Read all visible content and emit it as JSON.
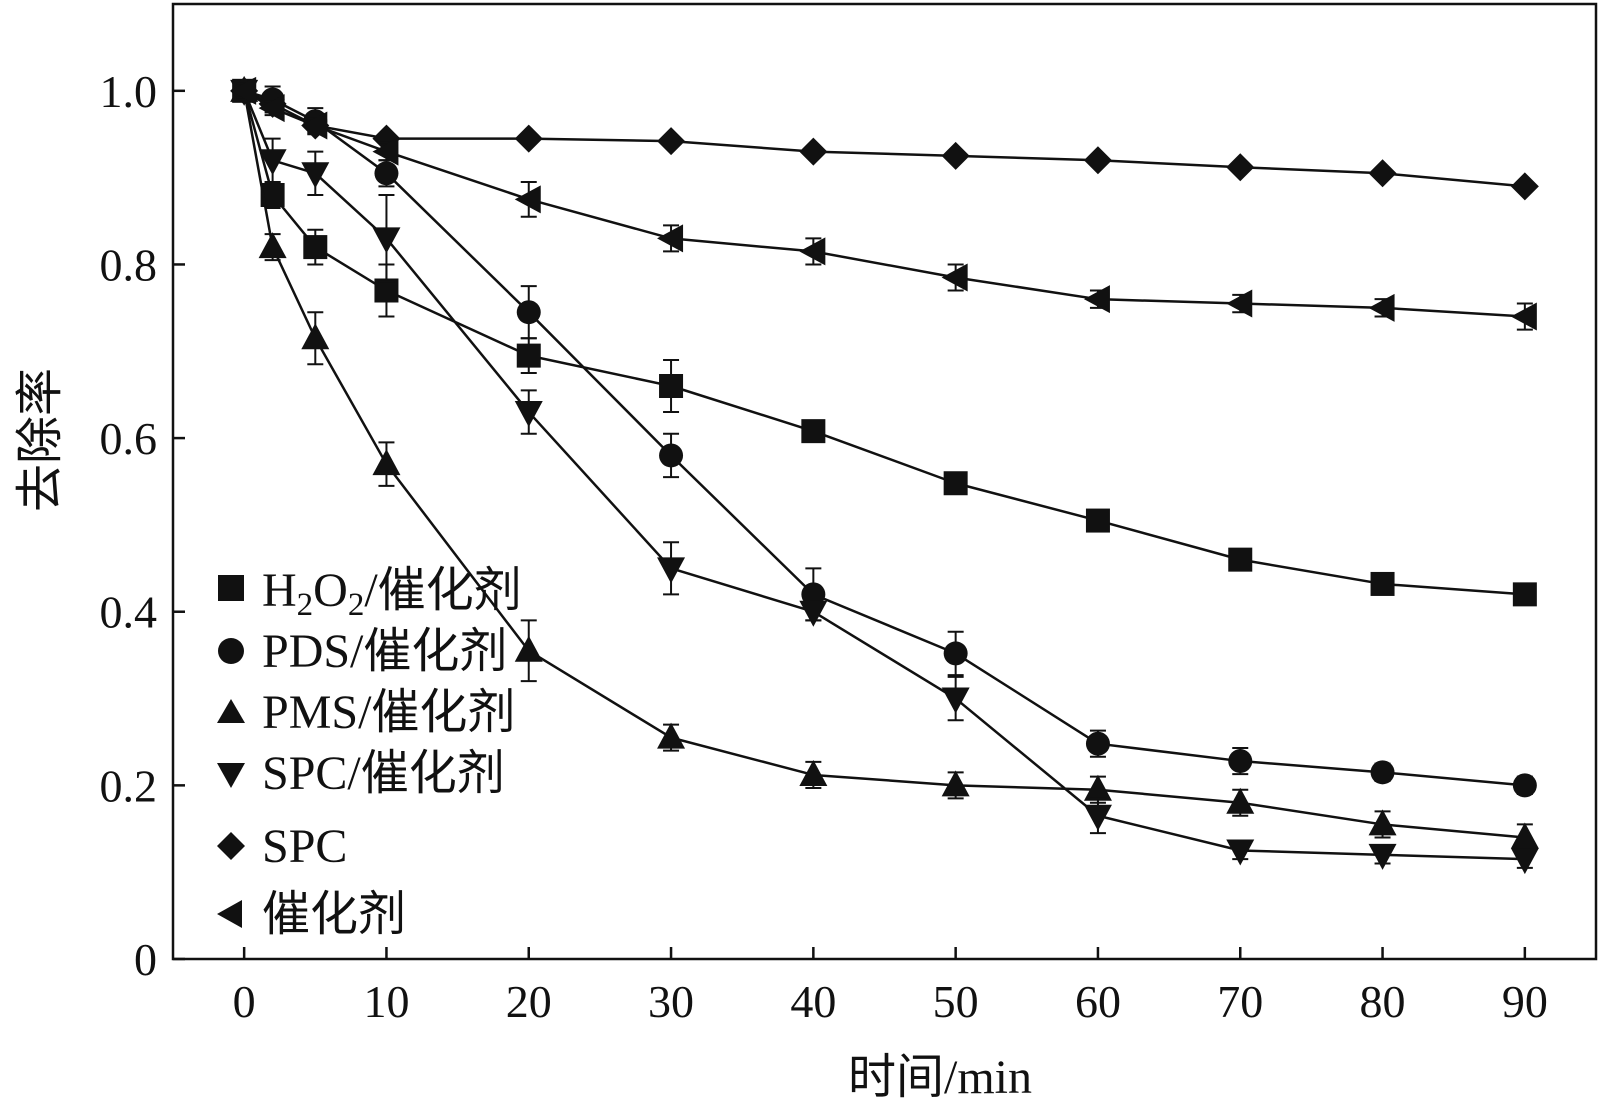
{
  "chart_data": {
    "type": "line",
    "title": "",
    "xlabel": "时间/min",
    "ylabel": "去除率",
    "xlim": [
      -5,
      95
    ],
    "ylim": [
      0,
      1.1
    ],
    "x_ticks": [
      0,
      10,
      20,
      30,
      40,
      50,
      60,
      70,
      80,
      90
    ],
    "x_tick_labels": [
      "0",
      "10",
      "20",
      "30",
      "40",
      "50",
      "60",
      "70",
      "80",
      "90"
    ],
    "y_ticks": [
      0,
      0.2,
      0.4,
      0.6,
      0.8,
      1.0
    ],
    "y_tick_labels": [
      "0",
      "0.2",
      "0.4",
      "0.6",
      "0.8",
      "1.0"
    ],
    "grid": false,
    "legend_position": "bottom-left",
    "x": [
      0,
      2,
      5,
      10,
      20,
      30,
      40,
      50,
      60,
      70,
      80,
      90
    ],
    "series": [
      {
        "name": "H2O2/催化剂",
        "legend_main": "H",
        "legend_sub1": "2",
        "legend_mid": "O",
        "legend_sub2": "2",
        "legend_rest": "/催化剂",
        "marker": "square",
        "values": [
          1.0,
          0.88,
          0.82,
          0.77,
          0.695,
          0.66,
          0.608,
          0.548,
          0.505,
          0.46,
          0.432,
          0.42
        ],
        "errors": [
          0.008,
          0.015,
          0.02,
          0.03,
          0.02,
          0.03,
          0.012,
          0.01,
          0.01,
          0.01,
          0.01,
          0.01
        ]
      },
      {
        "name": "PDS/催化剂",
        "marker": "circle",
        "values": [
          1.0,
          0.99,
          0.965,
          0.905,
          0.745,
          0.58,
          0.42,
          0.352,
          0.248,
          0.228,
          0.215,
          0.2
        ],
        "errors": [
          0.008,
          0.015,
          0.015,
          0.015,
          0.03,
          0.025,
          0.03,
          0.025,
          0.015,
          0.015,
          0.01,
          0.01
        ]
      },
      {
        "name": "PMS/催化剂",
        "marker": "triangle-up",
        "values": [
          1.0,
          0.82,
          0.715,
          0.57,
          0.355,
          0.255,
          0.212,
          0.2,
          0.195,
          0.18,
          0.155,
          0.14
        ],
        "errors": [
          0.008,
          0.015,
          0.03,
          0.025,
          0.035,
          0.015,
          0.015,
          0.015,
          0.015,
          0.015,
          0.015,
          0.015
        ]
      },
      {
        "name": "SPC/催化剂",
        "marker": "triangle-down",
        "values": [
          1.0,
          0.92,
          0.905,
          0.83,
          0.63,
          0.45,
          0.4,
          0.3,
          0.165,
          0.125,
          0.12,
          0.115
        ],
        "errors": [
          0.008,
          0.025,
          0.025,
          0.05,
          0.025,
          0.03,
          0.01,
          0.025,
          0.02,
          0.01,
          0.01,
          0.01
        ]
      },
      {
        "name": "SPC",
        "marker": "diamond",
        "values": [
          1.0,
          0.985,
          0.96,
          0.945,
          0.945,
          0.942,
          0.93,
          0.925,
          0.92,
          0.912,
          0.905,
          0.89
        ],
        "errors": [
          0.005,
          0.005,
          0.005,
          0.005,
          0.005,
          0.005,
          0.005,
          0.005,
          0.005,
          0.005,
          0.005,
          0.005
        ]
      },
      {
        "name": "催化剂",
        "marker": "triangle-left",
        "values": [
          1.0,
          0.98,
          0.96,
          0.93,
          0.875,
          0.83,
          0.815,
          0.785,
          0.76,
          0.755,
          0.75,
          0.74
        ],
        "errors": [
          0.008,
          0.008,
          0.008,
          0.01,
          0.02,
          0.015,
          0.015,
          0.015,
          0.01,
          0.01,
          0.01,
          0.015
        ]
      }
    ],
    "colors": {
      "line": "#111111",
      "background": "#ffffff"
    }
  }
}
